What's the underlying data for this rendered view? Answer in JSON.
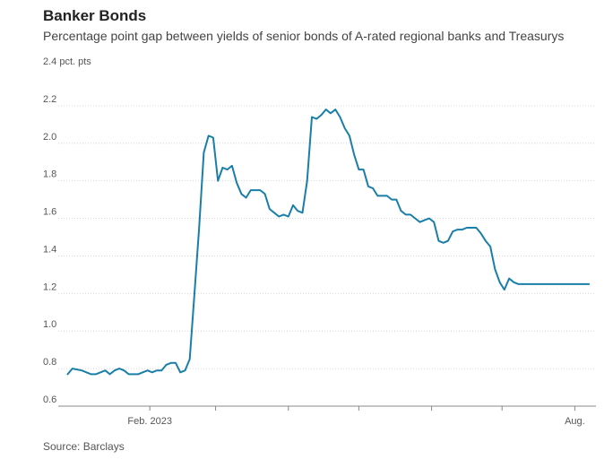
{
  "chart_data": {
    "type": "line",
    "title": "Banker Bonds",
    "subtitle": "Percentage point gap between yields of senior bonds of A-rated regional banks and Treasurys",
    "source": "Source: Barclays",
    "y_unit_label": "pct. pts",
    "ylim": [
      0.6,
      2.4
    ],
    "yticks": [
      0.6,
      0.8,
      1.0,
      1.2,
      1.4,
      1.6,
      1.8,
      2.0,
      2.2,
      2.4
    ],
    "ytick_labels": [
      "0.6",
      "0.8",
      "1.0",
      "1.2",
      "1.4",
      "1.6",
      "1.8",
      "2.0",
      "2.2",
      "2.4"
    ],
    "xlim": [
      "2022-12-24",
      "2023-08-10"
    ],
    "xtick_labels": [
      {
        "x": "2023-02-01",
        "label": "Feb. 2023"
      },
      {
        "x": "2023-08-01",
        "label": "Aug."
      }
    ],
    "x_minor_ticks": [
      "2023-03-01",
      "2023-04-01",
      "2023-05-01",
      "2023-06-01",
      "2023-07-01"
    ],
    "grid": true,
    "line_color": "#1a7fa8",
    "series": [
      {
        "x": [
          "2022-12-28",
          "2022-12-30",
          "2023-01-03",
          "2023-01-05",
          "2023-01-07",
          "2023-01-09",
          "2023-01-11",
          "2023-01-13",
          "2023-01-15",
          "2023-01-17",
          "2023-01-19",
          "2023-01-21",
          "2023-01-23",
          "2023-01-25",
          "2023-01-27",
          "2023-01-29",
          "2023-01-31",
          "2023-02-02",
          "2023-02-04",
          "2023-02-06",
          "2023-02-08",
          "2023-02-10",
          "2023-02-12",
          "2023-02-14",
          "2023-02-16",
          "2023-02-18",
          "2023-02-20",
          "2023-02-22",
          "2023-02-24",
          "2023-02-26",
          "2023-02-28",
          "2023-03-02",
          "2023-03-04",
          "2023-03-06",
          "2023-03-08",
          "2023-03-10",
          "2023-03-12",
          "2023-03-14",
          "2023-03-16",
          "2023-03-18",
          "2023-03-20",
          "2023-03-22",
          "2023-03-24",
          "2023-03-26",
          "2023-03-28",
          "2023-03-30",
          "2023-04-01",
          "2023-04-03",
          "2023-04-05",
          "2023-04-07",
          "2023-04-09",
          "2023-04-11",
          "2023-04-13",
          "2023-04-15",
          "2023-04-17",
          "2023-04-19",
          "2023-04-21",
          "2023-04-23",
          "2023-04-25",
          "2023-04-27",
          "2023-04-29",
          "2023-05-01",
          "2023-05-03",
          "2023-05-05",
          "2023-05-07",
          "2023-05-09",
          "2023-05-11",
          "2023-05-13",
          "2023-05-15",
          "2023-05-17",
          "2023-05-19",
          "2023-05-21",
          "2023-05-23",
          "2023-05-25",
          "2023-05-27",
          "2023-05-29",
          "2023-05-31",
          "2023-06-02",
          "2023-06-04",
          "2023-06-06",
          "2023-06-08",
          "2023-06-10",
          "2023-06-12",
          "2023-06-14",
          "2023-06-16",
          "2023-06-18",
          "2023-06-20",
          "2023-06-22",
          "2023-06-24",
          "2023-06-26",
          "2023-06-28",
          "2023-06-30",
          "2023-07-02",
          "2023-07-04",
          "2023-07-06",
          "2023-07-08",
          "2023-07-10",
          "2023-07-12",
          "2023-07-14",
          "2023-07-16",
          "2023-07-18",
          "2023-07-20",
          "2023-07-22",
          "2023-07-24",
          "2023-07-26",
          "2023-07-28",
          "2023-07-30",
          "2023-08-01",
          "2023-08-03",
          "2023-08-05",
          "2023-08-07"
        ],
        "y": [
          0.77,
          0.8,
          0.79,
          0.78,
          0.77,
          0.77,
          0.78,
          0.79,
          0.77,
          0.79,
          0.8,
          0.79,
          0.77,
          0.77,
          0.77,
          0.78,
          0.79,
          0.78,
          0.79,
          0.79,
          0.82,
          0.83,
          0.83,
          0.78,
          0.79,
          0.85,
          1.2,
          1.55,
          1.95,
          2.04,
          2.03,
          1.8,
          1.87,
          1.86,
          1.88,
          1.79,
          1.73,
          1.71,
          1.75,
          1.75,
          1.75,
          1.73,
          1.65,
          1.63,
          1.61,
          1.62,
          1.61,
          1.67,
          1.64,
          1.63,
          1.8,
          2.14,
          2.13,
          2.15,
          2.18,
          2.16,
          2.18,
          2.14,
          2.08,
          2.04,
          1.94,
          1.86,
          1.86,
          1.77,
          1.76,
          1.72,
          1.72,
          1.72,
          1.7,
          1.7,
          1.64,
          1.62,
          1.62,
          1.6,
          1.58,
          1.59,
          1.6,
          1.58,
          1.48,
          1.47,
          1.48,
          1.53,
          1.54,
          1.54,
          1.55,
          1.55,
          1.55,
          1.52,
          1.48,
          1.45,
          1.33,
          1.26,
          1.22,
          1.28,
          1.26,
          1.25,
          1.25,
          1.25,
          1.25,
          1.25,
          1.25,
          1.25,
          1.25,
          1.25,
          1.25,
          1.25,
          1.25,
          1.25,
          1.25,
          1.25,
          1.25
        ]
      }
    ]
  }
}
